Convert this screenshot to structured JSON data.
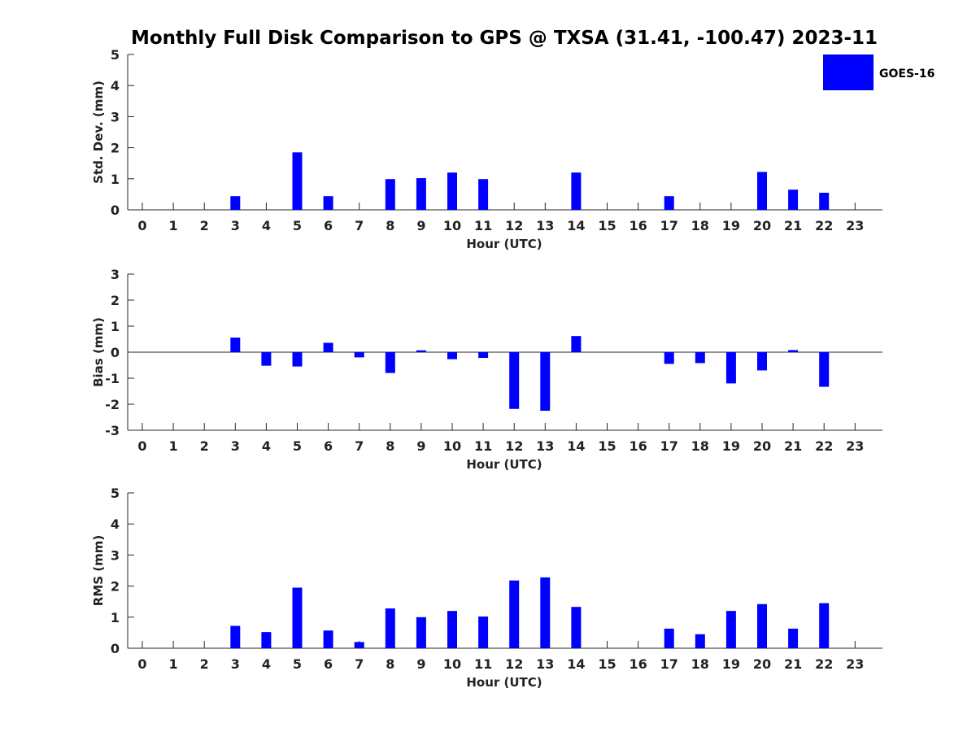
{
  "title": "Monthly Full Disk Comparison to GPS @ TXSA (31.41, -100.47) 2023-11",
  "legend": {
    "label": "GOES-16",
    "placement": "top-right",
    "color": "#0000ff"
  },
  "chart_data": [
    {
      "type": "bar",
      "ylabel": "Std. Dev. (mm)",
      "xlabel": "Hour (UTC)",
      "ylim": [
        0,
        5
      ],
      "yticks": [
        0,
        1,
        2,
        3,
        4,
        5
      ],
      "categories": [
        "0",
        "1",
        "2",
        "3",
        "4",
        "5",
        "6",
        "7",
        "8",
        "9",
        "10",
        "11",
        "12",
        "13",
        "14",
        "15",
        "16",
        "17",
        "18",
        "19",
        "20",
        "21",
        "22",
        "23"
      ],
      "series": [
        {
          "name": "GOES-16",
          "values": [
            null,
            null,
            null,
            0.44,
            null,
            1.85,
            0.44,
            null,
            0.99,
            1.02,
            1.2,
            0.99,
            null,
            null,
            1.2,
            null,
            null,
            0.44,
            null,
            null,
            1.22,
            0.65,
            0.55,
            null
          ]
        }
      ]
    },
    {
      "type": "bar",
      "ylabel": "Bias (mm)",
      "xlabel": "Hour (UTC)",
      "ylim": [
        -3,
        3
      ],
      "yticks": [
        -3,
        -2,
        -1,
        0,
        1,
        2,
        3
      ],
      "zero_line": true,
      "categories": [
        "0",
        "1",
        "2",
        "3",
        "4",
        "5",
        "6",
        "7",
        "8",
        "9",
        "10",
        "11",
        "12",
        "13",
        "14",
        "15",
        "16",
        "17",
        "18",
        "19",
        "20",
        "21",
        "22",
        "23"
      ],
      "series": [
        {
          "name": "GOES-16",
          "values": [
            null,
            null,
            null,
            0.56,
            -0.52,
            -0.55,
            0.36,
            -0.2,
            -0.8,
            0.07,
            -0.27,
            -0.22,
            -2.18,
            -2.25,
            0.62,
            null,
            null,
            -0.45,
            -0.42,
            -1.2,
            -0.7,
            0.08,
            -1.33,
            null
          ]
        }
      ]
    },
    {
      "type": "bar",
      "ylabel": "RMS (mm)",
      "xlabel": "Hour (UTC)",
      "ylim": [
        0,
        5
      ],
      "yticks": [
        0,
        1,
        2,
        3,
        4,
        5
      ],
      "categories": [
        "0",
        "1",
        "2",
        "3",
        "4",
        "5",
        "6",
        "7",
        "8",
        "9",
        "10",
        "11",
        "12",
        "13",
        "14",
        "15",
        "16",
        "17",
        "18",
        "19",
        "20",
        "21",
        "22",
        "23"
      ],
      "series": [
        {
          "name": "GOES-16",
          "values": [
            null,
            null,
            null,
            0.72,
            0.52,
            1.95,
            0.57,
            0.2,
            1.28,
            1.0,
            1.2,
            1.02,
            2.18,
            2.28,
            1.33,
            null,
            null,
            0.63,
            0.45,
            1.2,
            1.42,
            0.63,
            1.45,
            null
          ]
        }
      ]
    }
  ]
}
